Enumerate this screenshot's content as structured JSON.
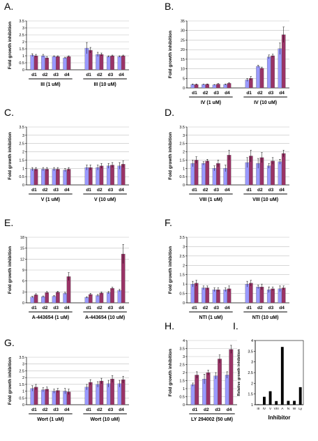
{
  "figure": {
    "colors": {
      "series_light": "#9999FF",
      "series_dark": "#993366",
      "single_bar": "#000000",
      "axis": "#000000",
      "grid": "#BFBFBF"
    },
    "common": {
      "ylabel": "Fold growth inhibition",
      "day_labels": [
        "d1",
        "d2",
        "d3",
        "d4"
      ]
    }
  },
  "chart_data": [
    {
      "panel": "A.",
      "type": "bar",
      "ylabel": "Fold growth inhibition",
      "categories": [
        "d1",
        "d2",
        "d3",
        "d4",
        "d1",
        "d2",
        "d3",
        "d4"
      ],
      "group_labels": [
        "III (1 uM)",
        "III (10 uM)"
      ],
      "ylim": [
        0,
        3.5
      ],
      "yticks": [
        0,
        0.5,
        1,
        1.5,
        2,
        2.5,
        3,
        3.5
      ],
      "ytick_labels": [
        "0",
        "0.5",
        "1",
        "1.5",
        "2",
        "2.5",
        "3",
        "3.5"
      ],
      "grid": true,
      "series": [
        {
          "values": [
            1.05,
            1.0,
            0.95,
            0.85,
            1.55,
            1.1,
            0.95,
            0.95
          ],
          "errors": [
            0.1,
            0.1,
            0.05,
            0.05,
            0.4,
            0.15,
            0.05,
            0.05
          ]
        },
        {
          "values": [
            1.0,
            0.85,
            0.95,
            0.95,
            1.4,
            1.1,
            1.0,
            1.0
          ],
          "errors": [
            0.1,
            0.1,
            0.05,
            0.05,
            0.2,
            0.1,
            0.05,
            0.05
          ]
        }
      ]
    },
    {
      "panel": "B.",
      "type": "bar",
      "ylabel": "Fold growth inhibition",
      "categories": [
        "d1",
        "d2",
        "d3",
        "d4",
        "d1",
        "d2",
        "d3",
        "d4"
      ],
      "group_labels": [
        "IV (1 uM)",
        "IV (10 uM)"
      ],
      "ylim": [
        0,
        35
      ],
      "yticks": [
        0,
        5,
        10,
        15,
        20,
        25,
        30,
        35
      ],
      "ytick_labels": [
        "0",
        "5",
        "10",
        "15",
        "20",
        "25",
        "30",
        "35"
      ],
      "grid": true,
      "series": [
        {
          "values": [
            1.8,
            1.8,
            1.6,
            1.8,
            4.2,
            11.3,
            16.2,
            20.5
          ],
          "errors": [
            0.3,
            0.2,
            0.2,
            0.3,
            0.8,
            0.6,
            1.0,
            3.0
          ]
        },
        {
          "values": [
            1.8,
            1.9,
            2.0,
            2.4,
            5.0,
            10.3,
            16.8,
            27.8
          ],
          "errors": [
            0.3,
            0.2,
            0.3,
            0.3,
            1.0,
            0.6,
            0.8,
            4.0
          ]
        }
      ]
    },
    {
      "panel": "C.",
      "type": "bar",
      "ylabel": "Fold growth inhibition",
      "categories": [
        "d1",
        "d2",
        "d3",
        "d4",
        "d1",
        "d2",
        "d3",
        "d4"
      ],
      "group_labels": [
        "V (1 uM)",
        "V (10 uM)"
      ],
      "ylim": [
        0,
        3.5
      ],
      "yticks": [
        0,
        0.5,
        1,
        1.5,
        2,
        2.5,
        3,
        3.5
      ],
      "ytick_labels": [
        "0",
        "0.5",
        "1",
        "1.5",
        "2",
        "2.5",
        "3",
        "3.5"
      ],
      "grid": true,
      "series": [
        {
          "values": [
            0.95,
            0.95,
            0.95,
            0.9,
            1.05,
            1.05,
            1.15,
            1.15
          ],
          "errors": [
            0.1,
            0.1,
            0.1,
            0.1,
            0.15,
            0.15,
            0.15,
            0.2
          ]
        },
        {
          "values": [
            0.95,
            0.95,
            0.95,
            0.95,
            1.05,
            1.15,
            1.2,
            1.25
          ],
          "errors": [
            0.1,
            0.1,
            0.1,
            0.1,
            0.15,
            0.15,
            0.15,
            0.2
          ]
        }
      ]
    },
    {
      "panel": "D.",
      "type": "bar",
      "ylabel": "Fold growth inhibition",
      "categories": [
        "d1",
        "d2",
        "d3",
        "d4",
        "d1",
        "d2",
        "d3",
        "d4"
      ],
      "group_labels": [
        "VIII (1 uM)",
        "VIII (10 uM)"
      ],
      "ylim": [
        0,
        3.5
      ],
      "yticks": [
        0,
        0.5,
        1,
        1.5,
        2,
        2.5,
        3,
        3.5
      ],
      "ytick_labels": [
        "0",
        "0.5",
        "1",
        "1.5",
        "2",
        "2.5",
        "3",
        "3.5"
      ],
      "grid": true,
      "series": [
        {
          "values": [
            1.3,
            1.3,
            1.0,
            1.0,
            1.35,
            1.3,
            1.15,
            1.4
          ],
          "errors": [
            0.2,
            0.1,
            0.15,
            0.2,
            0.3,
            0.3,
            0.15,
            0.15
          ]
        },
        {
          "values": [
            1.5,
            1.45,
            1.3,
            1.8,
            1.75,
            1.65,
            1.45,
            1.9
          ],
          "errors": [
            0.2,
            0.1,
            0.2,
            0.3,
            0.35,
            0.3,
            0.2,
            0.2
          ]
        }
      ]
    },
    {
      "panel": "E.",
      "type": "bar",
      "ylabel": "Fold growth inhibition",
      "categories": [
        "d1",
        "d2",
        "d3",
        "d4",
        "d1",
        "d2",
        "d3",
        "d4"
      ],
      "group_labels": [
        "A-443654 (1 uM)",
        "A-443654 (10 uM)"
      ],
      "ylim": [
        0,
        18
      ],
      "yticks": [
        0,
        3,
        6,
        9,
        12,
        15,
        18
      ],
      "ytick_labels": [
        "0",
        "3",
        "6",
        "9",
        "12",
        "15",
        "18"
      ],
      "grid": true,
      "series": [
        {
          "values": [
            1.6,
            1.7,
            1.8,
            2.6,
            1.5,
            2.0,
            2.8,
            3.4
          ],
          "errors": [
            0.2,
            0.2,
            0.2,
            0.3,
            0.2,
            0.3,
            0.3,
            0.3
          ]
        },
        {
          "values": [
            2.2,
            2.8,
            2.9,
            7.2,
            2.3,
            2.7,
            4.0,
            13.4
          ],
          "errors": [
            0.3,
            0.3,
            0.3,
            1.1,
            0.3,
            0.3,
            0.3,
            2.6
          ]
        }
      ]
    },
    {
      "panel": "F.",
      "type": "bar",
      "ylabel": "Fold growth inhibition",
      "categories": [
        "d1",
        "d2",
        "d3",
        "d4",
        "d1",
        "d2",
        "d3",
        "d4"
      ],
      "group_labels": [
        "NTI (1 uM)",
        "NTI (10 uM)"
      ],
      "ylim": [
        0,
        3.5
      ],
      "yticks": [
        0,
        0.5,
        1,
        1.5,
        2,
        2.5,
        3,
        3.5
      ],
      "ytick_labels": [
        "0",
        "0.5",
        "1",
        "1.5",
        "2",
        "2.5",
        "3",
        "3.5"
      ],
      "grid": true,
      "series": [
        {
          "values": [
            1.0,
            0.8,
            0.7,
            0.7,
            1.0,
            0.85,
            0.7,
            0.75
          ],
          "errors": [
            0.15,
            0.1,
            0.1,
            0.1,
            0.15,
            0.1,
            0.15,
            0.15
          ]
        },
        {
          "values": [
            1.05,
            0.8,
            0.7,
            0.75,
            1.05,
            0.85,
            0.75,
            0.8
          ],
          "errors": [
            0.15,
            0.1,
            0.1,
            0.15,
            0.15,
            0.15,
            0.1,
            0.1
          ]
        }
      ]
    },
    {
      "panel": "G.",
      "type": "bar",
      "ylabel": "Fold growth inhibition",
      "categories": [
        "d1",
        "d2",
        "d3",
        "d4",
        "d1",
        "d2",
        "d3",
        "d4"
      ],
      "group_labels": [
        "Wort (1 uM)",
        "Wort (10 uM)"
      ],
      "ylim": [
        0,
        3.5
      ],
      "yticks": [
        0,
        0.5,
        1,
        1.5,
        2,
        2.5,
        3,
        3.5
      ],
      "ytick_labels": [
        "0",
        "0.5",
        "1",
        "1.5",
        "2",
        "2.5",
        "3",
        "3.5"
      ],
      "grid": true,
      "series": [
        {
          "values": [
            1.2,
            1.1,
            1.0,
            1.0,
            1.3,
            1.5,
            1.55,
            1.55
          ],
          "errors": [
            0.2,
            0.15,
            0.15,
            0.2,
            0.2,
            0.2,
            0.25,
            0.25
          ]
        },
        {
          "values": [
            1.3,
            1.15,
            1.05,
            0.95,
            1.65,
            1.75,
            1.9,
            1.85
          ],
          "errors": [
            0.2,
            0.15,
            0.15,
            0.2,
            0.2,
            0.2,
            0.25,
            0.25
          ]
        }
      ]
    },
    {
      "panel": "H.",
      "type": "bar",
      "ylabel": "Fold growth inhibition",
      "categories": [
        "d1",
        "d2",
        "d3",
        "d4"
      ],
      "group_labels": [
        "LY 294002 (50 uM)"
      ],
      "ylim": [
        0,
        4
      ],
      "yticks": [
        0,
        0.5,
        1,
        1.5,
        2,
        2.5,
        3,
        3.5,
        4
      ],
      "ytick_labels": [
        "0",
        "0.5",
        "1",
        "1.5",
        "2",
        "2.5",
        "3",
        "3.5",
        "4"
      ],
      "grid": true,
      "series": [
        {
          "values": [
            1.25,
            1.6,
            1.8,
            1.85
          ],
          "errors": [
            0.1,
            0.3,
            0.2,
            0.2
          ]
        },
        {
          "values": [
            1.85,
            2.0,
            2.85,
            3.45
          ],
          "errors": [
            0.2,
            0.15,
            0.25,
            0.25
          ]
        }
      ]
    },
    {
      "panel": "I.",
      "type": "bar",
      "ylabel": "Relative growth inhibition",
      "xlabel": "Inhibitor",
      "categories": [
        "III",
        "IV",
        "V",
        "VIII",
        "A",
        "N",
        "W",
        "Ly"
      ],
      "ylim": [
        1,
        4
      ],
      "yticks": [
        1,
        1.5,
        2,
        2.5,
        3,
        3.5,
        4
      ],
      "ytick_labels": [
        "1",
        "1.5",
        "2",
        "2.5",
        "3",
        "3.5",
        "4"
      ],
      "grid": false,
      "values": [
        1.02,
        1.37,
        1.63,
        1.17,
        3.7,
        1.18,
        1.18,
        1.82
      ]
    }
  ]
}
